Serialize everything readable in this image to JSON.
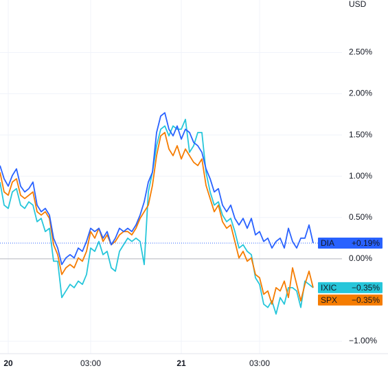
{
  "chart_data": {
    "type": "line",
    "unit": "USD",
    "xlim": [
      0,
      83
    ],
    "xticks": [
      {
        "value": 2,
        "label": "20"
      },
      {
        "value": 22,
        "label": "03:00"
      },
      {
        "value": 44,
        "label": "21"
      },
      {
        "value": 63,
        "label": "03:00"
      }
    ],
    "ylim": [
      -1.15,
      2.97
    ],
    "yticks": [
      {
        "value": -1,
        "label": "−1.00%"
      },
      {
        "value": 0,
        "label": "0.00%"
      },
      {
        "value": 0.5,
        "label": "0.50%"
      },
      {
        "value": 1,
        "label": "1.00%"
      },
      {
        "value": 1.5,
        "label": "1.50%"
      },
      {
        "value": 2,
        "label": "2.00%"
      },
      {
        "value": 2.5,
        "label": "2.50%"
      }
    ],
    "grid": true,
    "series": [
      {
        "name": "IXIC",
        "color": "#26c6da",
        "end_label": {
          "value": -0.35,
          "label": "−0.35%"
        },
        "values": [
          0.93,
          0.65,
          0.61,
          0.81,
          0.85,
          0.65,
          0.61,
          0.69,
          0.65,
          0.45,
          0.49,
          0.33,
          0.37,
          -0.03,
          -0.03,
          -0.47,
          -0.39,
          -0.31,
          -0.35,
          -0.27,
          -0.31,
          -0.19,
          0.13,
          0.09,
          0.21,
          0.05,
          0.09,
          -0.11,
          -0.15,
          0.09,
          0.17,
          0.25,
          0.21,
          0.25,
          0.21,
          -0.07,
          0.81,
          1.05,
          1.37,
          1.57,
          1.61,
          1.49,
          1.61,
          1.57,
          1.57,
          1.69,
          1.29,
          1.37,
          1.53,
          1.53,
          1.05,
          0.81,
          0.65,
          0.69,
          0.53,
          0.45,
          0.49,
          0.33,
          0.13,
          0.17,
          0.09,
          0.05,
          -0.23,
          -0.31,
          -0.55,
          -0.59,
          -0.51,
          -0.67,
          -0.47,
          -0.55,
          -0.35,
          -0.35,
          -0.39,
          -0.59,
          -0.27,
          -0.31,
          -0.35
        ]
      },
      {
        "name": "SPX",
        "color": "#f57c00",
        "end_label": {
          "value": -0.35,
          "label": "−0.35%"
        },
        "values": [
          1.05,
          0.81,
          0.77,
          0.93,
          0.97,
          0.77,
          0.73,
          0.77,
          0.81,
          0.57,
          0.53,
          0.57,
          0.49,
          0.17,
          0.05,
          -0.19,
          -0.11,
          -0.07,
          -0.11,
          0.01,
          -0.03,
          0.09,
          0.33,
          0.25,
          0.37,
          0.21,
          0.29,
          0.17,
          0.21,
          0.29,
          0.33,
          0.33,
          0.29,
          0.37,
          0.49,
          0.57,
          0.65,
          0.89,
          1.25,
          1.49,
          1.53,
          1.33,
          1.25,
          1.37,
          1.21,
          1.33,
          1.25,
          1.17,
          1.13,
          1.21,
          0.89,
          0.73,
          0.57,
          0.65,
          0.45,
          0.37,
          0.41,
          0.21,
          0.01,
          0.09,
          -0.03,
          0.01,
          -0.19,
          -0.23,
          -0.43,
          -0.39,
          -0.55,
          -0.35,
          -0.39,
          -0.27,
          -0.47,
          -0.11,
          -0.31,
          -0.51,
          -0.31,
          -0.15,
          -0.35
        ]
      },
      {
        "name": "DIA",
        "color": "#2962ff",
        "end_label": {
          "value": 0.19,
          "label": "+0.19%"
        },
        "values": [
          1.13,
          0.97,
          0.88,
          1.01,
          1.09,
          0.88,
          0.81,
          0.85,
          0.93,
          0.65,
          0.57,
          0.61,
          0.53,
          0.25,
          0.13,
          -0.07,
          0.01,
          0.05,
          0.01,
          0.13,
          0.09,
          0.21,
          0.37,
          0.33,
          0.37,
          0.25,
          0.33,
          0.17,
          0.25,
          0.37,
          0.33,
          0.37,
          0.33,
          0.41,
          0.53,
          0.69,
          0.93,
          1.05,
          1.53,
          1.73,
          1.77,
          1.57,
          1.49,
          1.61,
          1.45,
          1.57,
          1.53,
          1.41,
          1.37,
          1.29,
          1.09,
          0.97,
          0.81,
          0.85,
          0.65,
          0.57,
          0.65,
          0.49,
          0.41,
          0.49,
          0.37,
          0.49,
          0.29,
          0.33,
          0.21,
          0.25,
          0.13,
          0.21,
          0.25,
          0.13,
          0.37,
          0.21,
          0.13,
          0.25,
          0.25,
          0.41,
          0.19
        ]
      }
    ]
  }
}
